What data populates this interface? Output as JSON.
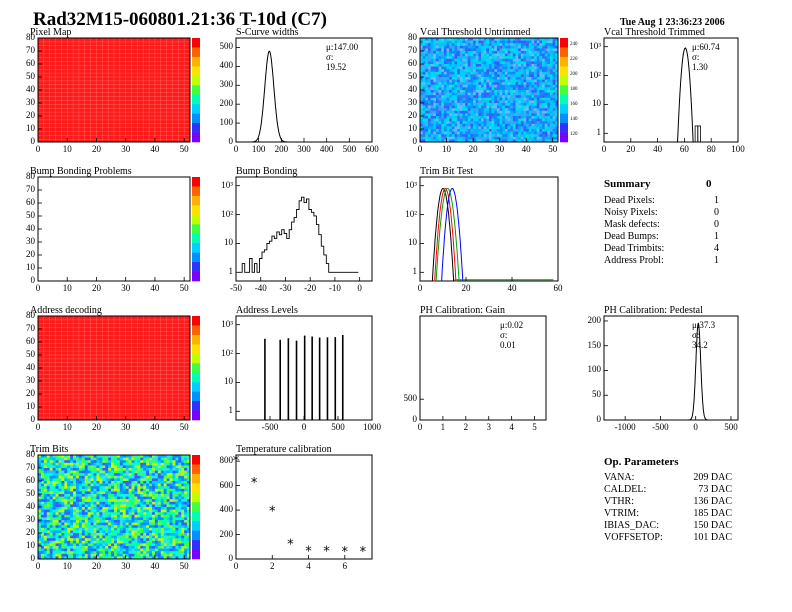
{
  "header": {
    "title": "Rad32M15-060801.21:36 T-10d (C7)",
    "timestamp": "Tue Aug  1 23:36:23 2006"
  },
  "colors": {
    "hist_line": "#000000",
    "pixel_red": "#ff1a1a",
    "palette": [
      "#7a00ff",
      "#3030ff",
      "#0090ff",
      "#00d0ff",
      "#00ffb0",
      "#40ff40",
      "#c0ff00",
      "#ffe000",
      "#ff8000",
      "#ff0000"
    ]
  },
  "summary": {
    "title": "Summary",
    "total": "0",
    "items": [
      {
        "label": "Dead Pixels:",
        "value": "1"
      },
      {
        "label": "Noisy Pixels:",
        "value": "0"
      },
      {
        "label": "Mask defects:",
        "value": "0"
      },
      {
        "label": "Dead Bumps:",
        "value": "1"
      },
      {
        "label": "Dead Trimbits:",
        "value": "4"
      },
      {
        "label": "Address Probl:",
        "value": "1"
      }
    ]
  },
  "op_params": {
    "title": "Op. Parameters",
    "items": [
      {
        "label": "VANA:",
        "value": "209 DAC"
      },
      {
        "label": "CALDEL:",
        "value": "73 DAC"
      },
      {
        "label": "VTHR:",
        "value": "136 DAC"
      },
      {
        "label": "VTRIM:",
        "value": "185 DAC"
      },
      {
        "label": "IBIAS_DAC:",
        "value": "150 DAC"
      },
      {
        "label": "VOFFSETOP:",
        "value": "101 DAC"
      }
    ]
  },
  "chart_data": [
    {
      "id": "pixel_map",
      "type": "heatmap",
      "title": "Pixel Map",
      "pattern": "uniform",
      "xlim": [
        0,
        52
      ],
      "ylim": [
        0,
        80
      ],
      "xticks": [
        0,
        10,
        20,
        30,
        40,
        50
      ],
      "yticks": [
        0,
        10,
        20,
        30,
        40,
        50,
        60,
        70,
        80
      ]
    },
    {
      "id": "scurve",
      "type": "histogram",
      "title": "S-Curve widths",
      "stats": [
        "μ:147.00",
        "σ: 19.52"
      ],
      "xlim": [
        0,
        600
      ],
      "ylim": [
        0,
        550
      ],
      "xticks": [
        0,
        100,
        200,
        300,
        400,
        500,
        600
      ],
      "yticks": [
        0,
        100,
        200,
        300,
        400,
        500
      ],
      "peaks": [
        {
          "x": 147,
          "sigma": 20,
          "height": 480
        }
      ]
    },
    {
      "id": "vcal_untrimmed",
      "type": "heatmap",
      "title": "Vcal Threshold Untrimmed",
      "pattern": "noisy_blue",
      "xlim": [
        0,
        52
      ],
      "ylim": [
        0,
        80
      ],
      "xticks": [
        0,
        10,
        20,
        30,
        40,
        50
      ],
      "yticks": [
        0,
        10,
        20,
        30,
        40,
        50,
        60,
        70,
        80
      ],
      "zticks": [
        "120",
        "140",
        "160",
        "180",
        "200",
        "220",
        "240"
      ]
    },
    {
      "id": "vcal_trimmed",
      "type": "histogram",
      "title": "Vcal Threshold Trimmed",
      "stats": [
        "μ:60.74",
        "σ: 1.30"
      ],
      "log": true,
      "xlim": [
        0,
        100
      ],
      "ylim": [
        0.5,
        2000
      ],
      "xticks": [
        0,
        20,
        40,
        60,
        80,
        100
      ],
      "yticks": [
        "1",
        "10",
        "10²",
        "10³"
      ],
      "peaks": [
        {
          "x": 60.7,
          "sigma": 1.5,
          "height": 900
        }
      ],
      "tail": [
        [
          68,
          1
        ],
        [
          70,
          1
        ]
      ]
    },
    {
      "id": "bump_problems",
      "type": "heatmap",
      "title": "Bump Bonding Problems",
      "pattern": "empty",
      "xlim": [
        0,
        52
      ],
      "ylim": [
        0,
        80
      ],
      "xticks": [
        0,
        10,
        20,
        30,
        40,
        50
      ],
      "yticks": [
        0,
        10,
        20,
        30,
        40,
        50,
        60,
        70,
        80
      ]
    },
    {
      "id": "bump_bonding",
      "type": "histogram",
      "title": "Bump Bonding",
      "log": true,
      "xlim": [
        -50,
        5
      ],
      "ylim": [
        0.5,
        2000
      ],
      "xticks": [
        -50,
        -40,
        -30,
        -20,
        -10,
        0
      ],
      "yticks": [
        "1",
        "10",
        "10²",
        "10³"
      ],
      "profile": [
        [
          -48,
          1
        ],
        [
          -47,
          2
        ],
        [
          -46,
          1
        ],
        [
          -45,
          1
        ],
        [
          -44,
          3
        ],
        [
          -43,
          1
        ],
        [
          -42,
          2
        ],
        [
          -41,
          1
        ],
        [
          -40,
          3
        ],
        [
          -39,
          5
        ],
        [
          -38,
          6
        ],
        [
          -37,
          10
        ],
        [
          -36,
          12
        ],
        [
          -35,
          18
        ],
        [
          -34,
          15
        ],
        [
          -33,
          25
        ],
        [
          -32,
          20
        ],
        [
          -31,
          30
        ],
        [
          -30,
          22
        ],
        [
          -29,
          15
        ],
        [
          -28,
          30
        ],
        [
          -27,
          55
        ],
        [
          -26,
          80
        ],
        [
          -25,
          150
        ],
        [
          -24,
          300
        ],
        [
          -23,
          400
        ],
        [
          -22,
          260
        ],
        [
          -21,
          350
        ],
        [
          -20,
          150
        ],
        [
          -19,
          120
        ],
        [
          -18,
          90
        ],
        [
          -17,
          45
        ],
        [
          -16,
          20
        ],
        [
          -15,
          8
        ],
        [
          -14,
          4
        ],
        [
          -13,
          2
        ],
        [
          -12,
          1
        ],
        [
          -1,
          1
        ]
      ]
    },
    {
      "id": "trim_bit_test",
      "type": "histogram",
      "title": "Trim Bit Test",
      "log": true,
      "xlim": [
        0,
        60
      ],
      "ylim": [
        0.5,
        2000
      ],
      "xticks": [
        0,
        20,
        40,
        60
      ],
      "yticks": [
        "1",
        "10",
        "10²",
        "10³"
      ],
      "multi": [
        {
          "color": "#000000",
          "peak": 10,
          "s": 1.2
        },
        {
          "color": "#ff0000",
          "peak": 11,
          "s": 1.2
        },
        {
          "color": "#00a000",
          "peak": 12,
          "s": 1.3
        },
        {
          "color": "#0000ff",
          "peak": 14,
          "s": 1.2
        }
      ]
    },
    {
      "id": "address_decoding",
      "type": "heatmap",
      "title": "Address decoding",
      "pattern": "uniform",
      "xlim": [
        0,
        52
      ],
      "ylim": [
        0,
        80
      ],
      "xticks": [
        0,
        10,
        20,
        30,
        40,
        50
      ],
      "yticks": [
        0,
        10,
        20,
        30,
        40,
        50,
        60,
        70,
        80
      ]
    },
    {
      "id": "address_levels",
      "type": "histogram",
      "title": "Address Levels",
      "log": true,
      "xlim": [
        -1000,
        1000
      ],
      "ylim": [
        0.5,
        2000
      ],
      "xticks": [
        -500,
        0,
        500,
        1000
      ],
      "yticks": [
        "1",
        "10",
        "10²",
        "10³"
      ],
      "spikes": [
        -575,
        -350,
        -230,
        -110,
        10,
        120,
        230,
        345,
        460,
        570
      ]
    },
    {
      "id": "ph_gain",
      "type": "histogram",
      "title": "PH Calibration: Gain",
      "stats": [
        "μ:0.02",
        "σ: 0.01"
      ],
      "xlim": [
        0,
        5.5
      ],
      "ylim": [
        0,
        2500
      ],
      "xticks": [
        0,
        1,
        2,
        3,
        4,
        5
      ],
      "yticks": [
        0,
        500
      ],
      "empty": true
    },
    {
      "id": "ph_pedestal",
      "type": "histogram",
      "title": "PH Calibration: Pedestal",
      "stats": [
        "μ:37.3",
        "σ: 34.2"
      ],
      "xlim": [
        -1300,
        600
      ],
      "ylim": [
        0,
        210
      ],
      "xticks": [
        -1000,
        -500,
        0,
        500
      ],
      "yticks": [
        0,
        50,
        100,
        150,
        200
      ],
      "peaks": [
        {
          "x": 37,
          "sigma": 34,
          "height": 195
        }
      ]
    },
    {
      "id": "trim_bits",
      "type": "heatmap",
      "title": "Trim Bits",
      "pattern": "noisy_map",
      "xlim": [
        0,
        52
      ],
      "ylim": [
        0,
        80
      ],
      "xticks": [
        0,
        10,
        20,
        30,
        40,
        50
      ],
      "yticks": [
        0,
        10,
        20,
        30,
        40,
        50,
        60,
        70,
        80
      ]
    },
    {
      "id": "temperature",
      "type": "scatter",
      "title": "Temperature calibration",
      "xlim": [
        0,
        7.5
      ],
      "ylim": [
        0,
        850
      ],
      "xticks": [
        0,
        2,
        4,
        6
      ],
      "yticks": [
        0,
        200,
        400,
        600,
        800
      ],
      "points": [
        [
          0,
          800
        ],
        [
          1,
          620
        ],
        [
          2,
          390
        ],
        [
          3,
          120
        ],
        [
          4,
          62
        ],
        [
          5,
          60
        ],
        [
          6,
          57
        ],
        [
          7,
          58
        ]
      ]
    }
  ]
}
